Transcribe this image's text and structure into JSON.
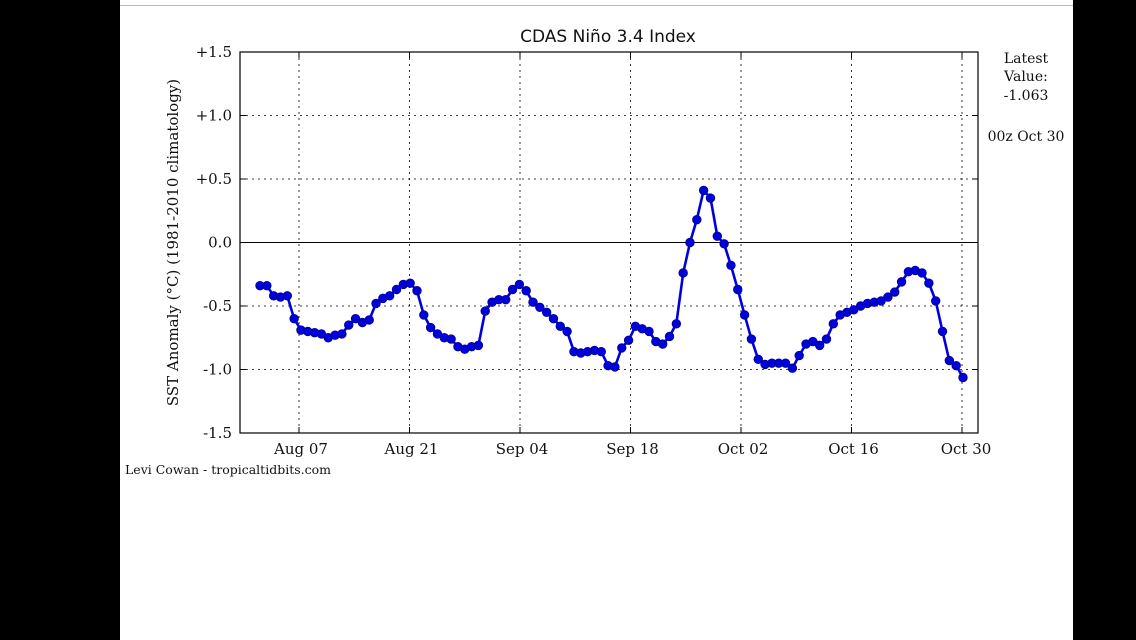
{
  "chart_data": {
    "type": "line",
    "title": "CDAS Niño 3.4 Index",
    "xlabel": "",
    "ylabel": "SST Anomaly (°C) (1981-2010 climatology)",
    "ylim": [
      -1.5,
      1.5
    ],
    "yticks": [
      -1.5,
      -1.0,
      -0.5,
      0.0,
      0.5,
      1.0,
      1.5
    ],
    "ytick_labels": [
      "-1.5",
      "-1.0",
      "-0.5",
      "0.0",
      "+0.5",
      "+1.0",
      "+1.5"
    ],
    "xtick_labels": [
      "Aug 07",
      "Aug 21",
      "Sep 04",
      "Sep 18",
      "Oct 02",
      "Oct 16",
      "Oct 30"
    ],
    "grid": true,
    "zero_line": true,
    "series_color": "#0000dd",
    "note_latest_label": "Latest Value:",
    "note_latest_value": "-1.063",
    "note_time": "00z Oct 30",
    "credit": "Levi Cowan - tropicaltidbits.com",
    "values": [
      -0.34,
      -0.34,
      -0.42,
      -0.43,
      -0.42,
      -0.6,
      -0.69,
      -0.7,
      -0.71,
      -0.72,
      -0.75,
      -0.73,
      -0.72,
      -0.65,
      -0.6,
      -0.63,
      -0.61,
      -0.48,
      -0.44,
      -0.42,
      -0.37,
      -0.33,
      -0.32,
      -0.38,
      -0.57,
      -0.67,
      -0.72,
      -0.75,
      -0.76,
      -0.82,
      -0.84,
      -0.82,
      -0.81,
      -0.54,
      -0.47,
      -0.45,
      -0.45,
      -0.37,
      -0.33,
      -0.38,
      -0.47,
      -0.51,
      -0.55,
      -0.6,
      -0.66,
      -0.7,
      -0.86,
      -0.87,
      -0.86,
      -0.85,
      -0.86,
      -0.97,
      -0.98,
      -0.83,
      -0.77,
      -0.66,
      -0.68,
      -0.7,
      -0.78,
      -0.8,
      -0.74,
      -0.64,
      -0.24,
      0.0,
      0.18,
      0.41,
      0.35,
      0.05,
      -0.01,
      -0.18,
      -0.37,
      -0.57,
      -0.76,
      -0.92,
      -0.96,
      -0.95,
      -0.95,
      -0.95,
      -0.99,
      -0.89,
      -0.8,
      -0.78,
      -0.81,
      -0.76,
      -0.64,
      -0.57,
      -0.55,
      -0.53,
      -0.5,
      -0.48,
      -0.47,
      -0.46,
      -0.43,
      -0.39,
      -0.31,
      -0.23,
      -0.22,
      -0.24,
      -0.32,
      -0.46,
      -0.7,
      -0.93,
      -0.97,
      -1.063
    ]
  }
}
